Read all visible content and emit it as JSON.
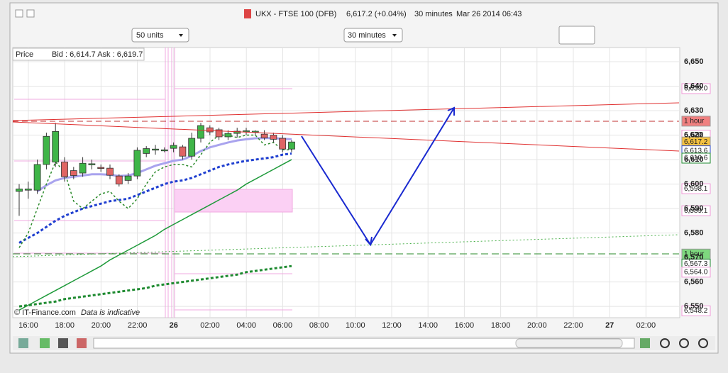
{
  "header": {
    "symbol": "UKX - FTSE 100 (DFB)",
    "price": "6,617.2 (+0.04%)",
    "interval": "30 minutes",
    "datetime": "Mar 26 2014 06:43"
  },
  "controls": {
    "units": "50 units",
    "interval": "30 minutes"
  },
  "legend": {
    "series": "Price",
    "quote": "Bid : 6,614.7 Ask : 6,619.7"
  },
  "footer": {
    "copyright": "© IT-Finance.com",
    "note": "Data is indicative"
  },
  "chart_data": {
    "type": "candlestick",
    "open": [
      6597,
      6597.5,
      6597.5,
      6608,
      6609,
      6609,
      6605.5,
      6604.5,
      6608,
      6606.8,
      6606.5,
      6603.3,
      6601.5,
      6603.3,
      6612.5,
      6614,
      6614,
      6614.6,
      6615.2,
      6611.4,
      6618.7,
      6623,
      6622.2,
      6619.3,
      6620.7,
      6621.6,
      6621.5,
      6620.4,
      6620,
      6618.7,
      6614.3
    ],
    "high": [
      6600,
      6601,
      6610,
      6621,
      6625,
      6611,
      6607,
      6611,
      6610,
      6608,
      6608,
      6604,
      6604.5,
      6615,
      6615.5,
      6616,
      6615,
      6617,
      6616,
      6621,
      6625,
      6624,
      6623,
      6622,
      6623,
      6623,
      6622,
      6622,
      6621,
      6620,
      6618
    ],
    "low": [
      6587,
      6594,
      6596,
      6606,
      6607,
      6601,
      6602,
      6603,
      6606,
      6605,
      6602,
      6599,
      6600,
      6602,
      6611,
      6612,
      6613,
      6613,
      6610,
      6610,
      6617,
      6620,
      6618,
      6618,
      6619,
      6620,
      6620,
      6618,
      6617,
      6613,
      6613
    ],
    "close": [
      6598,
      6598,
      6608,
      6619.5,
      6621.5,
      6603,
      6603.5,
      6608.5,
      6608.3,
      6606.5,
      6603.6,
      6600,
      6603.3,
      6613.8,
      6614.5,
      6614.3,
      6614,
      6615.8,
      6611.4,
      6618.7,
      6623.9,
      6621.3,
      6619.3,
      6620.7,
      6621.6,
      6621.8,
      6621.6,
      6618.9,
      6618.3,
      6614.3,
      6617.2
    ],
    "categories": [
      null,
      null,
      null,
      null,
      null,
      null,
      null,
      null,
      null,
      null,
      null,
      null,
      null,
      null,
      null,
      null,
      null,
      null,
      null,
      null,
      null,
      null,
      null,
      null,
      null,
      null,
      null,
      null,
      null,
      null,
      null
    ],
    "up_color": "#3fb548",
    "down_color": "#e06464",
    "series": [
      {
        "color": "#a9a3ee",
        "width": 3,
        "dash": "",
        "values": [
          null,
          null,
          6597,
          6599.5,
          6601.5,
          6602.5,
          6603,
          6603.5,
          6604,
          6604,
          6603.8,
          6603.3,
          6603.5,
          6604.5,
          6606,
          6607.5,
          6608.5,
          6609.5,
          6610,
          6611.5,
          6613.5,
          6615,
          6616,
          6617,
          6617.8,
          6618.3,
          6618.7,
          6618.8,
          6618.8,
          6618.5,
          6618.3
        ]
      },
      {
        "color": "#1f3fd0",
        "width": 3,
        "dash": "4 3",
        "values": [
          6576,
          6578,
          6580,
          6582.5,
          6585,
          6587,
          6588.5,
          6590,
          6591,
          6592,
          6593,
          6593.5,
          6594,
          6595.5,
          6597,
          6598.5,
          6600,
          6601,
          6601.5,
          6602.5,
          6604,
          6605.5,
          6607,
          6608,
          6608.8,
          6609.5,
          6610,
          6610.5,
          6611,
          6612,
          6612.5
        ]
      },
      {
        "color": "#1e9a3a",
        "width": 1.5,
        "dash": "",
        "values": [
          6548.5,
          6550.5,
          6552.5,
          6554.5,
          6556.5,
          6558.5,
          6560.5,
          6562.5,
          6564.5,
          6566.5,
          6569,
          6571,
          6573,
          6575,
          6577,
          6579,
          6581.5,
          6583.5,
          6585.5,
          6587.5,
          6589.5,
          6591.5,
          6593.5,
          6595.5,
          6597.5,
          6600,
          6602,
          6604,
          6606,
          6608,
          6610
        ]
      },
      {
        "color": "#1e8a30",
        "width": 3,
        "dash": "4 3",
        "values": [
          6550,
          6550.5,
          6551,
          6551.5,
          6552,
          6553,
          6553.5,
          6554,
          6554.5,
          6555,
          6555.5,
          6556,
          6556.5,
          6557,
          6557.5,
          6558.5,
          6559,
          6559.5,
          6560,
          6560.5,
          6561,
          6561.5,
          6562,
          6562.5,
          6563,
          6564,
          6564.5,
          6565,
          6565.5,
          6566,
          6566.5
        ]
      },
      {
        "color": "#2a8a2a",
        "width": 1.5,
        "dash": "3 3",
        "values": [
          6574,
          6580,
          6590,
          6600,
          6609,
          6605,
          6593,
          6590,
          6593,
          6596,
          6597,
          6593,
          6590,
          6594,
          6600,
          6605,
          6607,
          6608,
          6608,
          6607,
          6612,
          6617,
          6620,
          6620,
          6619,
          6620,
          6620,
          6616,
          6617,
          6614,
          6614
        ]
      }
    ],
    "ylim": [
      6545.4,
      6655.8
    ],
    "yticks": [
      {
        "value": 6550,
        "label": "6,550"
      },
      {
        "value": 6560,
        "label": "6,560"
      },
      {
        "value": 6570,
        "label": "6,570"
      },
      {
        "value": 6580,
        "label": "6,580"
      },
      {
        "value": 6590,
        "label": "6,590"
      },
      {
        "value": 6600,
        "label": "6,600"
      },
      {
        "value": 6610,
        "label": "6,610"
      },
      {
        "value": 6620,
        "label": "6,620"
      },
      {
        "value": 6630,
        "label": "6,630"
      },
      {
        "value": 6640,
        "label": "6,640"
      },
      {
        "value": 6650,
        "label": "6,650"
      }
    ],
    "xticks": [
      "16:00",
      "18:00",
      "20:00",
      "22:00",
      "26",
      "02:00",
      "04:00",
      "06:00",
      "08:00",
      "10:00",
      "12:00",
      "14:00",
      "16:00",
      "18:00",
      "20:00",
      "22:00",
      "27",
      "02:00"
    ],
    "price_labels": [
      {
        "value": 6639,
        "label": "6,639.0",
        "color": "#f09ad8",
        "fill": "#ffffff"
      },
      {
        "value": 6625.7,
        "label": "1 hour",
        "color": "#222222",
        "fill": "#f08080"
      },
      {
        "value": 6620,
        "label": "6,620",
        "color": "#f09ad8",
        "fill": "#ffffff"
      },
      {
        "value": 6617.2,
        "label": "6,617.2",
        "color": "#222222",
        "fill": "#f5c242"
      },
      {
        "value": 6613.6,
        "label": "6,613.6",
        "color": "#2a4ad0",
        "fill": "#ffffff"
      },
      {
        "value": 6610.6,
        "label": "6,610.6",
        "color": "#1e8a30",
        "fill": "#ffffff"
      },
      {
        "value": 6598.1,
        "label": "6,598.1",
        "color": "#f09ad8",
        "fill": "#ffffff"
      },
      {
        "value": 6589.1,
        "label": "6,589.1",
        "color": "#f09ad8",
        "fill": "#ffffff"
      },
      {
        "value": 6571.4,
        "label": "1 hour",
        "color": "#222222",
        "fill": "#7ed87e"
      },
      {
        "value": 6567.3,
        "label": "6,567.3",
        "color": "#1e8a30",
        "fill": "#ffffff"
      },
      {
        "value": 6564,
        "label": "6,564.0",
        "color": "#f09ad8",
        "fill": "#ffffff"
      },
      {
        "value": 6548.2,
        "label": "6,548.2",
        "color": "#f09ad8",
        "fill": "#ffffff"
      }
    ]
  }
}
